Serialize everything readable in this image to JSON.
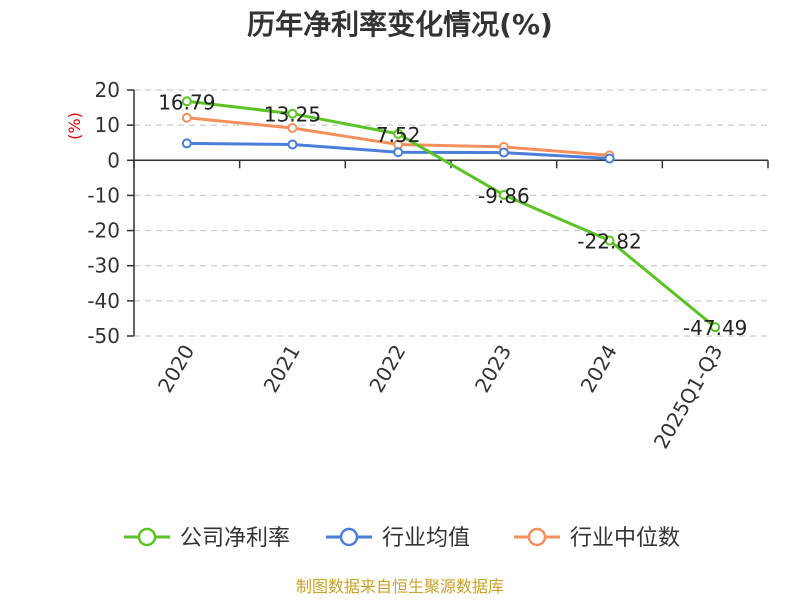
{
  "chart_data": {
    "type": "line",
    "title": "历年净利率变化情况(%)",
    "ylabel": "(%)",
    "xlabel": "",
    "categories": [
      "2020",
      "2021",
      "2022",
      "2023",
      "2024",
      "2025Q1-Q3"
    ],
    "ylim": [
      -50,
      20
    ],
    "yticks": [
      20,
      10,
      0,
      -10,
      -20,
      -30,
      -40,
      -50
    ],
    "grid": true,
    "legend_position": "bottom",
    "series": [
      {
        "name": "公司净利率",
        "color": "#5cc327",
        "values": [
          16.79,
          13.25,
          7.52,
          -9.86,
          -22.82,
          -47.49
        ],
        "labels": [
          "16.79",
          "13.25",
          "7.52",
          "-9.86",
          "-22.82",
          "-47.49"
        ]
      },
      {
        "name": "行业均值",
        "color": "#4a7ed9",
        "values": [
          4.8,
          4.5,
          2.3,
          2.2,
          0.5,
          null
        ]
      },
      {
        "name": "行业中位数",
        "color": "#f5905d",
        "values": [
          12.1,
          9.2,
          4.5,
          3.8,
          1.4,
          null
        ]
      }
    ],
    "source": "制图数据来自恒生聚源数据库"
  }
}
